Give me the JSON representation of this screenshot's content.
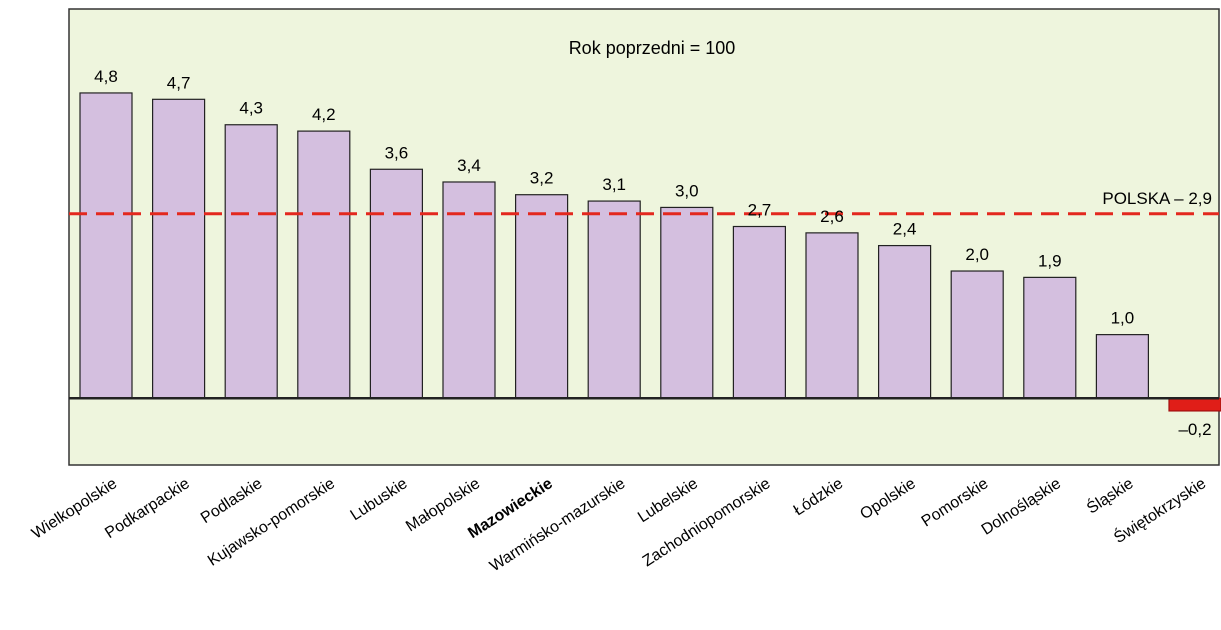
{
  "chart_data": {
    "type": "bar",
    "title": "Rok poprzedni = 100",
    "categories": [
      "Wielkopolskie",
      "Podkarpackie",
      "Podlaskie",
      "Kujawsko-pomorskie",
      "Lubuskie",
      "Małopolskie",
      "Mazowieckie",
      "Warmińsko-mazurskie",
      "Lubelskie",
      "Zachodniopomorskie",
      "Łódzkie",
      "Opolskie",
      "Pomorskie",
      "Dolnośląskie",
      "Śląskie",
      "Świętokrzyskie"
    ],
    "highlighted_category": "Mazowieckie",
    "values": [
      4.8,
      4.7,
      4.3,
      4.2,
      3.6,
      3.4,
      3.2,
      3.1,
      3.0,
      2.7,
      2.6,
      2.4,
      2.0,
      1.9,
      1.0,
      -0.2
    ],
    "value_labels": [
      "4,8",
      "4,7",
      "4,3",
      "4,2",
      "3,6",
      "3,4",
      "3,2",
      "3,1",
      "3,0",
      "2,7",
      "2,6",
      "2,4",
      "2,0",
      "1,9",
      "1,0",
      "–0,2"
    ],
    "reference_line": {
      "label": "POLSKA – 2,9",
      "value": 2.9,
      "color": "#e3281e",
      "style": "dashed"
    },
    "ylim": [
      -1.05,
      6.12
    ],
    "colors": {
      "positive": "#d4bfdf",
      "negative": "#e01e18",
      "background": "#eef5dd",
      "border": "#333333"
    },
    "xlabel": "",
    "ylabel": "",
    "grid": false
  }
}
